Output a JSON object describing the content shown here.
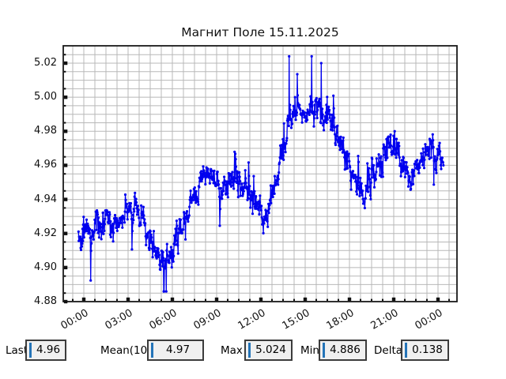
{
  "chart_data": {
    "type": "line",
    "title": "Магнит Поле 15.11.2025",
    "series_name": "magnetic-field",
    "line_color": "#0000ee",
    "grid_color": "#b8b8b8",
    "spine_color": "#1a1a1a",
    "grid": "on",
    "legend": "none",
    "y_axis": {
      "tick_labels": [
        "5.02",
        "5.00",
        "4.98",
        "4.96",
        "4.94",
        "4.92",
        "4.90",
        "4.88"
      ],
      "ticks": [
        5.02,
        5.0,
        4.98,
        4.96,
        4.94,
        4.92,
        4.9,
        4.88
      ],
      "minor_step": 0.005,
      "range_bottom": 4.88,
      "range_top": 5.0302
    },
    "x_axis": {
      "tick_labels": [
        "00:00",
        "03:00",
        "06:00",
        "09:00",
        "12:00",
        "15:00",
        "18:00",
        "21:00",
        "00:00"
      ],
      "tick_hours": [
        0,
        3,
        6,
        9,
        12,
        15,
        18,
        21,
        24
      ],
      "minor_per_major": 4,
      "range_hours": [
        -1.393,
        25.286
      ]
    },
    "data_start_hour": -0.36,
    "data_end_hour": 24.36,
    "trend_points": [
      [
        -0.36,
        4.918
      ],
      [
        0,
        4.922
      ],
      [
        0.5,
        4.921
      ],
      [
        1,
        4.925
      ],
      [
        1.5,
        4.928
      ],
      [
        2,
        4.925
      ],
      [
        2.5,
        4.929
      ],
      [
        3,
        4.932
      ],
      [
        3.5,
        4.934
      ],
      [
        4,
        4.928
      ],
      [
        4.5,
        4.917
      ],
      [
        5,
        4.906
      ],
      [
        5.5,
        4.902
      ],
      [
        6,
        4.908
      ],
      [
        6.5,
        4.921
      ],
      [
        7,
        4.932
      ],
      [
        7.5,
        4.944
      ],
      [
        8,
        4.952
      ],
      [
        8.5,
        4.957
      ],
      [
        9,
        4.951
      ],
      [
        9.5,
        4.946
      ],
      [
        10,
        4.95
      ],
      [
        10.5,
        4.952
      ],
      [
        11,
        4.947
      ],
      [
        11.5,
        4.94
      ],
      [
        12,
        4.931
      ],
      [
        12.5,
        4.933
      ],
      [
        13,
        4.949
      ],
      [
        13.5,
        4.969
      ],
      [
        13.9,
        4.988
      ],
      [
        14.3,
        4.994
      ],
      [
        14.7,
        4.99
      ],
      [
        15,
        4.989
      ],
      [
        15.4,
        4.996
      ],
      [
        15.8,
        4.993
      ],
      [
        16.2,
        4.99
      ],
      [
        16.6,
        4.986
      ],
      [
        17,
        4.979
      ],
      [
        17.5,
        4.97
      ],
      [
        18,
        4.961
      ],
      [
        18.5,
        4.949
      ],
      [
        19,
        4.941
      ],
      [
        19.5,
        4.951
      ],
      [
        20,
        4.962
      ],
      [
        20.5,
        4.97
      ],
      [
        21,
        4.974
      ],
      [
        21.5,
        4.962
      ],
      [
        22,
        4.95
      ],
      [
        22.5,
        4.958
      ],
      [
        23,
        4.967
      ],
      [
        23.5,
        4.971
      ],
      [
        24,
        4.964
      ],
      [
        24.36,
        4.96
      ]
    ],
    "anchor_points": [
      [
        5.6,
        4.886
      ],
      [
        13.92,
        5.024
      ],
      [
        15.44,
        5.024
      ],
      [
        16.1,
        5.02
      ],
      [
        24.36,
        4.96
      ]
    ],
    "noise": {
      "sigma": 0.0115,
      "ar": 0.45,
      "spike_prob": 0.03,
      "spike_amp": 0.015,
      "dt_hours": 0.025,
      "seed": 42
    },
    "value_min": 4.886,
    "value_max": 5.024
  },
  "stats_bar": {
    "fields": [
      {
        "label": "Last",
        "value": "4.96"
      },
      {
        "label": "Mean(10)",
        "value": "4.97"
      },
      {
        "label": "Max",
        "value": "5.024"
      },
      {
        "label": "Min",
        "value": "4.886"
      },
      {
        "label": "Delta",
        "value": "0.138"
      }
    ]
  },
  "colors": {
    "background": "#ffffff",
    "trace_blue": "#0000ee",
    "cursor_blue": "#2474b8",
    "box_fill": "#f0f0f0",
    "box_border": "#3c3c3c"
  }
}
